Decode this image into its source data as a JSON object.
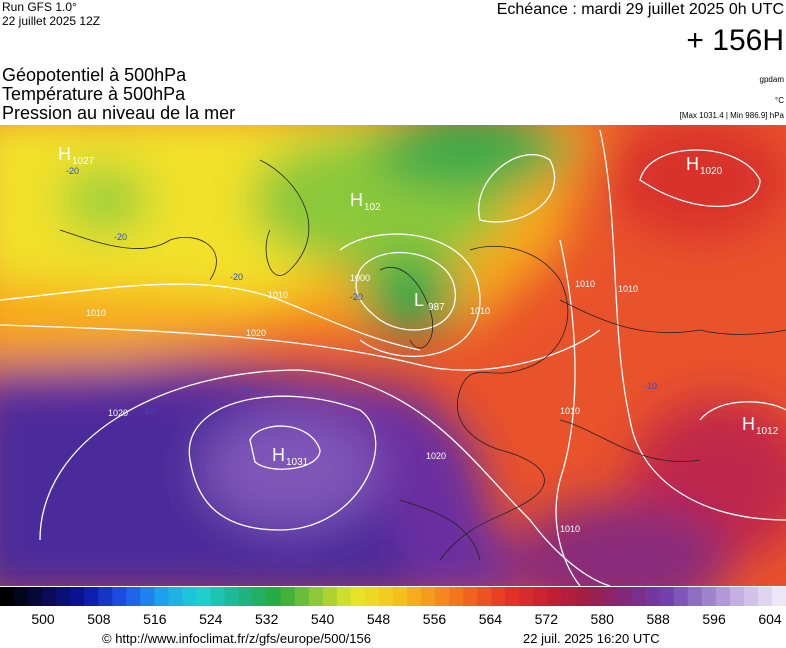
{
  "header": {
    "run": "Run GFS 1.0°",
    "run_date": "22 juillet 2025 12Z",
    "valid": "Echéance : mardi 29 juillet 2025 0h UTC",
    "lead": "+ 156H"
  },
  "layers": [
    {
      "name": "Géopotentiel à 500hPa",
      "unit": "gpdam"
    },
    {
      "name": "Température à 500hPa",
      "unit": "°C"
    },
    {
      "name": "Pression au niveau de la mer",
      "unit": "[Max 1031.4 | Min 986.9] hPa"
    }
  ],
  "pressure_centers": [
    {
      "kind": "H",
      "value": 1027
    },
    {
      "kind": "H",
      "value": 1020
    },
    {
      "kind": "H",
      "value": 102
    },
    {
      "kind": "L",
      "value": 987
    },
    {
      "kind": "H",
      "value": 1031
    },
    {
      "kind": "H",
      "value": 1012
    }
  ],
  "isobar_labels": [
    1010,
    1010,
    1020,
    1020,
    1020,
    1010,
    1000,
    1010,
    1010,
    1010,
    1010
  ],
  "temperature_labels": [
    -20,
    -20,
    -20,
    -20,
    -10,
    -10,
    -10
  ],
  "colorbar_ticks": [
    500,
    508,
    516,
    524,
    532,
    540,
    548,
    556,
    564,
    572,
    580,
    588,
    596,
    604
  ],
  "footer": {
    "source": "© http://www.infoclimat.fr/z/gfs/europe/500/156",
    "generated": "22 juil. 2025 16:20 UTC"
  }
}
